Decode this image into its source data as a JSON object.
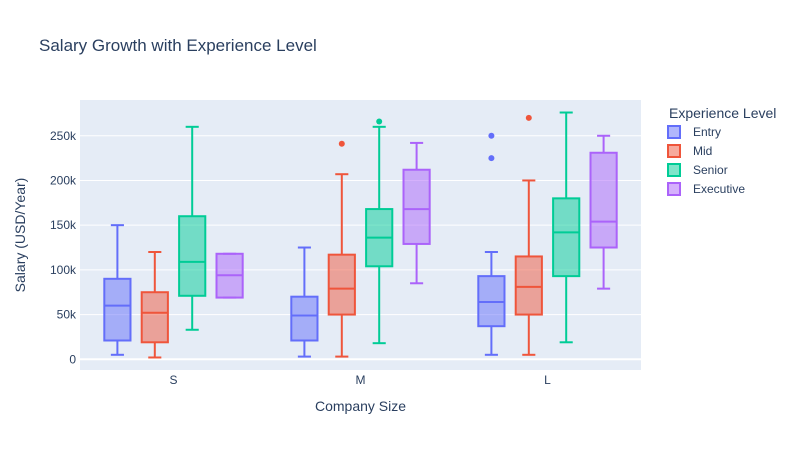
{
  "chart_data": {
    "type": "box",
    "title": "Salary Growth with Experience Level",
    "xlabel": "Company Size",
    "ylabel": "Salary (USD/Year)",
    "categories": [
      "S",
      "M",
      "L"
    ],
    "ylim": [
      -12000,
      290000
    ],
    "yticks": [
      {
        "value": 0,
        "label": "0"
      },
      {
        "value": 50000,
        "label": "50k"
      },
      {
        "value": 100000,
        "label": "100k"
      },
      {
        "value": 150000,
        "label": "150k"
      },
      {
        "value": 200000,
        "label": "200k"
      },
      {
        "value": 250000,
        "label": "250k"
      }
    ],
    "legend": {
      "title": "Experience Level",
      "position": "right"
    },
    "grid": true,
    "series": [
      {
        "name": "Entry",
        "color": "#636efa",
        "boxes": [
          {
            "category": "S",
            "min": 5000,
            "q1": 21000,
            "median": 60000,
            "q3": 90000,
            "max": 150000,
            "outliers": []
          },
          {
            "category": "M",
            "min": 3000,
            "q1": 21000,
            "median": 49000,
            "q3": 70000,
            "max": 125000,
            "outliers": []
          },
          {
            "category": "L",
            "min": 5000,
            "q1": 37000,
            "median": 64000,
            "q3": 93000,
            "max": 120000,
            "outliers": [
              225000,
              250000
            ]
          }
        ]
      },
      {
        "name": "Mid",
        "color": "#ef553b",
        "boxes": [
          {
            "category": "S",
            "min": 2000,
            "q1": 19000,
            "median": 52000,
            "q3": 75000,
            "max": 120000,
            "outliers": []
          },
          {
            "category": "M",
            "min": 3000,
            "q1": 50000,
            "median": 79000,
            "q3": 117000,
            "max": 207000,
            "outliers": [
              241000
            ]
          },
          {
            "category": "L",
            "min": 5000,
            "q1": 50000,
            "median": 81000,
            "q3": 115000,
            "max": 200000,
            "outliers": [
              270000
            ]
          }
        ]
      },
      {
        "name": "Senior",
        "color": "#00cc96",
        "boxes": [
          {
            "category": "S",
            "min": 33000,
            "q1": 71000,
            "median": 109000,
            "q3": 160000,
            "max": 260000,
            "outliers": []
          },
          {
            "category": "M",
            "min": 18000,
            "q1": 104000,
            "median": 136000,
            "q3": 168000,
            "max": 260000,
            "outliers": [
              266000
            ]
          },
          {
            "category": "L",
            "min": 19000,
            "q1": 93000,
            "median": 142000,
            "q3": 180000,
            "max": 276000,
            "outliers": []
          }
        ]
      },
      {
        "name": "Executive",
        "color": "#ab63fa",
        "boxes": [
          {
            "category": "S",
            "min": 69000,
            "q1": 69000,
            "median": 94000,
            "q3": 118000,
            "max": 118000,
            "outliers": []
          },
          {
            "category": "M",
            "min": 85000,
            "q1": 129000,
            "median": 168000,
            "q3": 212000,
            "max": 242000,
            "outliers": []
          },
          {
            "category": "L",
            "min": 79000,
            "q1": 125000,
            "median": 154000,
            "q3": 231000,
            "max": 250000,
            "outliers": []
          }
        ]
      }
    ]
  }
}
